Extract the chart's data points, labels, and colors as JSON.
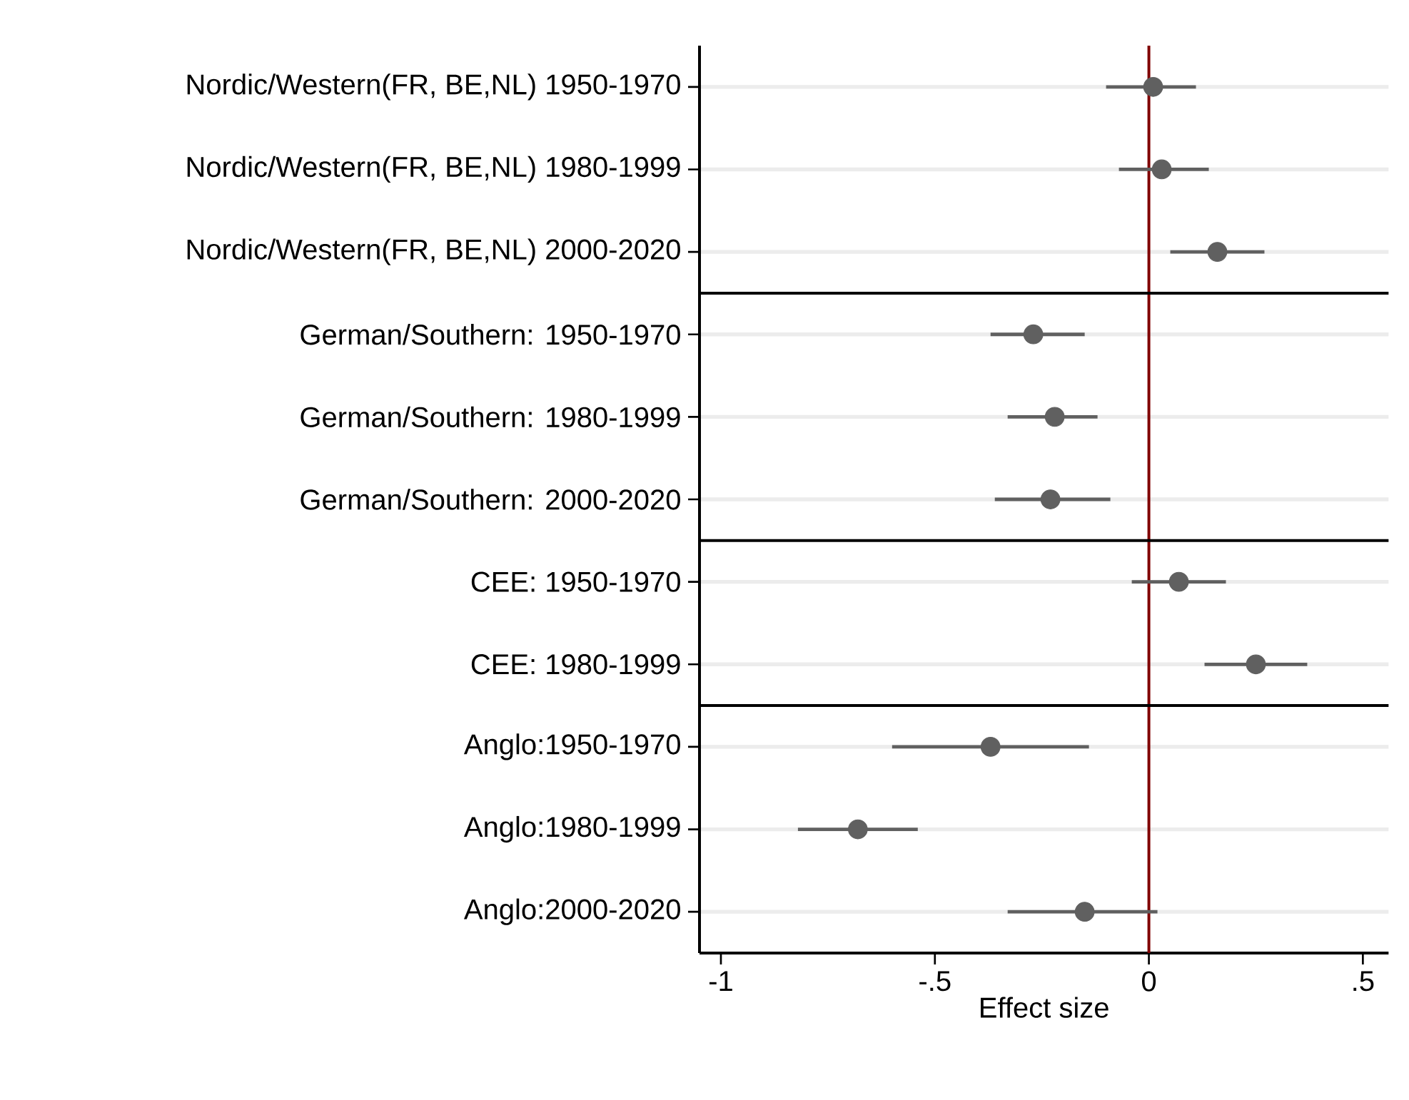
{
  "chart_data": {
    "type": "scatter",
    "orientation": "horizontal",
    "xlabel": "Effect size",
    "categories": [
      "Nordic/Western(FR, BE,NL) 1950-1970",
      "Nordic/Western(FR, BE,NL) 1980-1999",
      "Nordic/Western(FR, BE,NL) 2000-2020",
      "German/Southern: 1950-1970",
      "German/Southern: 1980-1999",
      "German/Southern: 2000-2020",
      "CEE: 1950-1970",
      "CEE: 1980-1999",
      "Anglo:1950-1970",
      "Anglo:1980-1999",
      "Anglo:2000-2020"
    ],
    "values": [
      0.01,
      0.03,
      0.16,
      -0.27,
      -0.22,
      -0.23,
      0.07,
      0.25,
      -0.37,
      -0.68,
      -0.15
    ],
    "errors": [
      [
        -0.1,
        0.11
      ],
      [
        -0.07,
        0.14
      ],
      [
        0.05,
        0.27
      ],
      [
        -0.37,
        -0.15
      ],
      [
        -0.33,
        -0.12
      ],
      [
        -0.36,
        -0.09
      ],
      [
        -0.04,
        0.18
      ],
      [
        0.13,
        0.37
      ],
      [
        -0.6,
        -0.14
      ],
      [
        -0.82,
        -0.54
      ],
      [
        -0.33,
        0.02
      ]
    ],
    "color": "#606060",
    "grid": "y",
    "xlim": [
      -1.05,
      0.56
    ],
    "xticks": [
      -1,
      {
        "value": -0.5,
        "label": "-.5"
      },
      0,
      {
        "value": 0.5,
        "label": ".5"
      }
    ],
    "ref_lines": [
      {
        "axis": "x",
        "value": 0,
        "color": "#800000"
      }
    ]
  }
}
